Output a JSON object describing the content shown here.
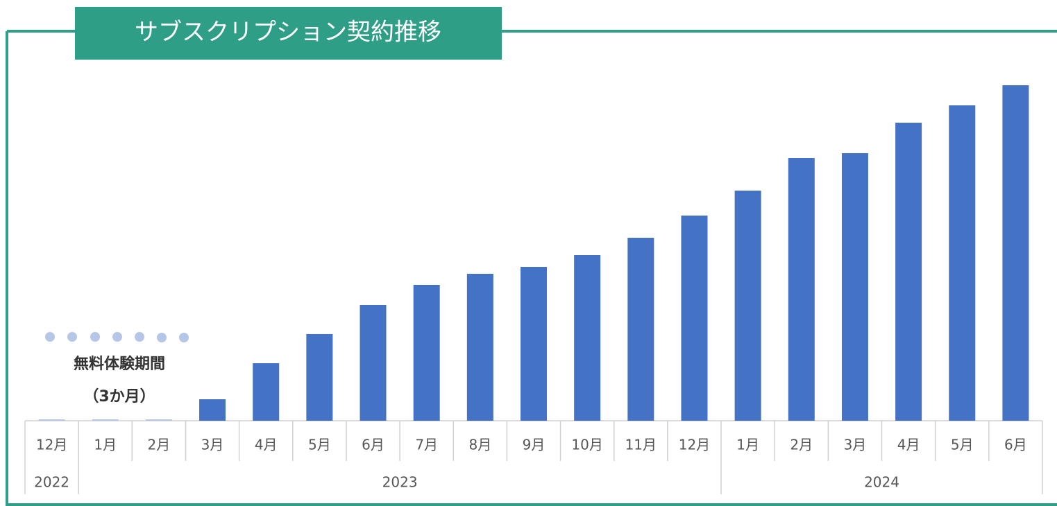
{
  "chart_data": {
    "type": "bar",
    "title": "サブスクリプション契約推移",
    "categories": [
      "12月",
      "1月",
      "2月",
      "3月",
      "4月",
      "5月",
      "6月",
      "7月",
      "8月",
      "9月",
      "10月",
      "11月",
      "12月",
      "1月",
      "2月",
      "3月",
      "4月",
      "5月",
      "6月"
    ],
    "values": [
      2,
      2,
      2,
      31,
      83,
      125,
      167,
      196,
      212,
      222,
      239,
      264,
      296,
      332,
      379,
      386,
      430,
      455,
      484
    ],
    "colors": [
      "#b4c7e7",
      "#b4c7e7",
      "#b4c7e7",
      "#4472c4",
      "#4472c4",
      "#4472c4",
      "#4472c4",
      "#4472c4",
      "#4472c4",
      "#4472c4",
      "#4472c4",
      "#4472c4",
      "#4472c4",
      "#4472c4",
      "#4472c4",
      "#4472c4",
      "#4472c4",
      "#4472c4",
      "#4472c4"
    ],
    "year_groups": [
      {
        "label": "2022",
        "span": 1
      },
      {
        "label": "2023",
        "span": 12
      },
      {
        "label": "2024",
        "span": 6
      }
    ],
    "annotations": [
      "無料体験期間",
      "（3か月）"
    ],
    "ylim": [
      0,
      500
    ]
  }
}
